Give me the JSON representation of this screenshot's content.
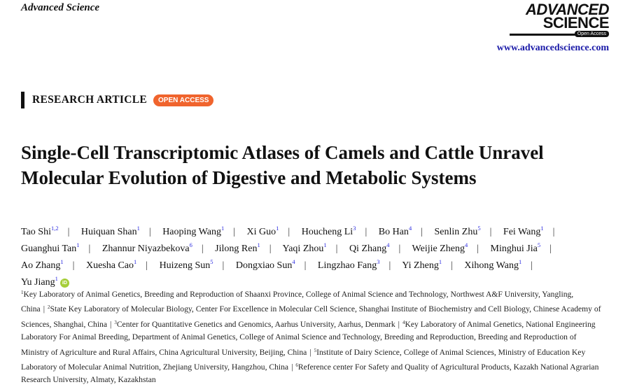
{
  "header": {
    "journal": "Advanced Science",
    "logo_line1": "ADVANCED",
    "logo_line2": "SCIENCE",
    "logo_badge": "Open Access",
    "url": "www.advancedscience.com"
  },
  "article_type": "RESEARCH ARTICLE",
  "access_badge": "OPEN ACCESS",
  "title": "Single-Cell Transcriptomic Atlases of Camels and Cattle Unravel Molecular Evolution of Digestive and Metabolic Systems",
  "authors": [
    {
      "name": "Tao Shi",
      "aff": "1,2"
    },
    {
      "name": "Huiquan Shan",
      "aff": "1"
    },
    {
      "name": "Haoping Wang",
      "aff": "1"
    },
    {
      "name": "Xi Guo",
      "aff": "1"
    },
    {
      "name": "Houcheng Li",
      "aff": "3"
    },
    {
      "name": "Bo Han",
      "aff": "4"
    },
    {
      "name": "Senlin Zhu",
      "aff": "5"
    },
    {
      "name": "Fei Wang",
      "aff": "1"
    },
    {
      "name": "Guanghui Tan",
      "aff": "1"
    },
    {
      "name": "Zhannur Niyazbekova",
      "aff": "6"
    },
    {
      "name": "Jilong Ren",
      "aff": "1"
    },
    {
      "name": "Yaqi Zhou",
      "aff": "1"
    },
    {
      "name": "Qi Zhang",
      "aff": "4"
    },
    {
      "name": "Weijie Zheng",
      "aff": "4"
    },
    {
      "name": "Minghui Jia",
      "aff": "5"
    },
    {
      "name": "Ao Zhang",
      "aff": "1"
    },
    {
      "name": "Xuesha Cao",
      "aff": "1"
    },
    {
      "name": "Huizeng Sun",
      "aff": "5"
    },
    {
      "name": "Dongxiao Sun",
      "aff": "4"
    },
    {
      "name": "Lingzhao Fang",
      "aff": "3"
    },
    {
      "name": "Yi Zheng",
      "aff": "1"
    },
    {
      "name": "Xihong Wang",
      "aff": "1"
    },
    {
      "name": "Yu Jiang",
      "aff": "1",
      "orcid": "iD"
    }
  ],
  "affiliations": [
    {
      "num": "1",
      "text": "Key Laboratory of Animal Genetics, Breeding and Reproduction of Shaanxi Province, College of Animal Science and Technology, Northwest A&F University, Yangling, China"
    },
    {
      "num": "2",
      "text": "State Key Laboratory of Molecular Biology, Center For Excellence in Molecular Cell Science, Shanghai Institute of Biochemistry and Cell Biology, Chinese Academy of Sciences, Shanghai, China"
    },
    {
      "num": "3",
      "text": "Center for Quantitative Genetics and Genomics, Aarhus University, Aarhus, Denmark"
    },
    {
      "num": "4",
      "text": "Key Laboratory of Animal Genetics, National Engineering Laboratory For Animal Breeding, Department of Animal Genetics, College of Animal Science and Technology, Breeding and Reproduction, Breeding and Reproduction of Ministry of Agriculture and Rural Affairs, China Agricultural University, Beijing, China"
    },
    {
      "num": "5",
      "text": "Institute of Dairy Science, College of Animal Sciences, Ministry of Education Key Laboratory of Molecular Animal Nutrition, Zhejiang University, Hangzhou, China"
    },
    {
      "num": "6",
      "text": "Reference center For Safety and Quality of Agricultural Products, Kazakh National Agrarian Research University, Almaty, Kazakhstan"
    }
  ],
  "colors": {
    "accent_badge": "#f0642d",
    "link": "#1a1aa8",
    "orcid": "#a6ce39"
  }
}
